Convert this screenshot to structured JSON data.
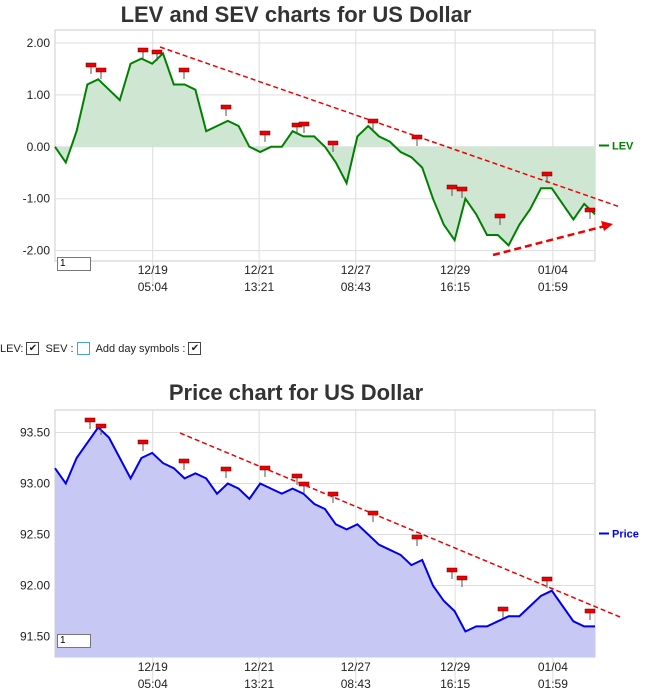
{
  "chart_data": [
    {
      "type": "line",
      "title": "LEV and SEV charts for US Dollar",
      "x": [
        0,
        2,
        4,
        6,
        8,
        10,
        12,
        14,
        16,
        18,
        20,
        22,
        24,
        26,
        28,
        30,
        32,
        34,
        36,
        38,
        40,
        42,
        44,
        46,
        48,
        50,
        52,
        54,
        56,
        58,
        60,
        62,
        64,
        66,
        68,
        70,
        72,
        74,
        76,
        78,
        80,
        82,
        84,
        86,
        88,
        90,
        92,
        94,
        96,
        98,
        100
      ],
      "series": [
        {
          "name": "LEV",
          "color": "#008000",
          "fill": "#cfe6d3",
          "values": [
            0.0,
            -0.3,
            0.3,
            1.2,
            1.3,
            1.1,
            0.9,
            1.6,
            1.7,
            1.6,
            1.8,
            1.2,
            1.2,
            1.1,
            0.3,
            0.4,
            0.5,
            0.4,
            0.0,
            -0.1,
            0.0,
            0.0,
            0.3,
            0.2,
            0.2,
            0.0,
            -0.3,
            -0.7,
            0.2,
            0.4,
            0.2,
            0.1,
            -0.1,
            -0.2,
            -0.4,
            -1.0,
            -1.5,
            -1.8,
            -1.0,
            -1.3,
            -1.7,
            -1.7,
            -1.9,
            -1.5,
            -1.2,
            -0.8,
            -0.8,
            -1.1,
            -1.4,
            -1.1,
            -1.3
          ]
        }
      ],
      "xlim": [
        0,
        100
      ],
      "xticks": [
        {
          "value": 18.1,
          "label": "12/19 05:04"
        },
        {
          "value": 37.8,
          "label": "12/21 13:21"
        },
        {
          "value": 55.7,
          "label": "12/27 08:43"
        },
        {
          "value": 74.1,
          "label": "12/29 16:15"
        },
        {
          "value": 92.2,
          "label": "01/04 01:59"
        }
      ],
      "ylim": [
        -2.2,
        2.25
      ],
      "yticks": [
        {
          "value": 2,
          "label": "2.00"
        },
        {
          "value": 1,
          "label": "1.00"
        },
        {
          "value": 0,
          "label": "0.00"
        },
        {
          "value": -1,
          "label": "-1.00"
        },
        {
          "value": -2,
          "label": "-2.00"
        }
      ],
      "grid": true,
      "legend": "right"
    },
    {
      "type": "line",
      "title": "Price chart for US Dollar",
      "x": [
        0,
        2,
        4,
        6,
        8,
        10,
        12,
        14,
        16,
        18,
        20,
        22,
        24,
        26,
        28,
        30,
        32,
        34,
        36,
        38,
        40,
        42,
        44,
        46,
        48,
        50,
        52,
        54,
        56,
        58,
        60,
        62,
        64,
        66,
        68,
        70,
        72,
        74,
        76,
        78,
        80,
        82,
        84,
        86,
        88,
        90,
        92,
        94,
        96,
        98,
        100
      ],
      "series": [
        {
          "name": "Price",
          "color": "#0000ee",
          "fill": "#c8c8f4",
          "values": [
            93.15,
            93.0,
            93.25,
            93.4,
            93.55,
            93.45,
            93.25,
            93.05,
            93.25,
            93.3,
            93.2,
            93.15,
            93.05,
            93.1,
            93.05,
            92.9,
            93.0,
            92.95,
            92.85,
            93.0,
            92.95,
            92.9,
            92.95,
            92.9,
            92.8,
            92.75,
            92.6,
            92.55,
            92.6,
            92.5,
            92.4,
            92.35,
            92.3,
            92.2,
            92.25,
            92.0,
            91.85,
            91.75,
            91.55,
            91.6,
            91.6,
            91.65,
            91.7,
            91.7,
            91.8,
            91.9,
            91.95,
            91.8,
            91.65,
            91.6,
            91.6
          ]
        }
      ],
      "xlim": [
        0,
        100
      ],
      "xticks": [
        {
          "value": 18.1,
          "label": "12/19 05:04"
        },
        {
          "value": 37.8,
          "label": "12/21 13:21"
        },
        {
          "value": 55.7,
          "label": "12/27 08:43"
        },
        {
          "value": 74.1,
          "label": "12/29 16:15"
        },
        {
          "value": 92.2,
          "label": "01/04 01:59"
        }
      ],
      "ylim": [
        91.3,
        93.72
      ],
      "yticks": [
        {
          "value": 93.5,
          "label": "93.50"
        },
        {
          "value": 93,
          "label": "93.00"
        },
        {
          "value": 92.5,
          "label": "92.50"
        },
        {
          "value": 92,
          "label": "92.00"
        },
        {
          "value": 91.5,
          "label": "91.50"
        }
      ],
      "grid": true,
      "legend": "right"
    }
  ],
  "controls": {
    "lev": "LEV:",
    "sev": "SEV :",
    "day_symbols": "Add day symbols :"
  },
  "zoom_inputs": [
    "1",
    "1"
  ]
}
